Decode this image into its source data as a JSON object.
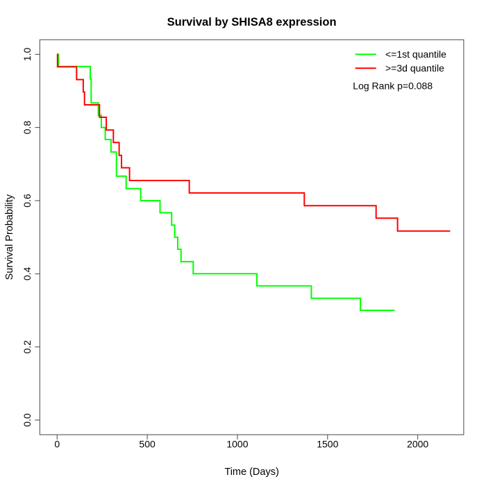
{
  "figure_title": "Survival by SHISA8 expression",
  "chart_data": {
    "type": "line",
    "subtype": "kaplan_meier_step",
    "title": "Survival by SHISA8 expression",
    "xlabel": "Time (Days)",
    "ylabel": "Survival Probability",
    "grid": false,
    "legend_position": "top-right",
    "annotation": "Log Rank p=0.088",
    "xlim": [
      -96,
      2255
    ],
    "ylim": [
      -0.04,
      1.04
    ],
    "x_tick_values": [
      0,
      500,
      1000,
      1500,
      2000
    ],
    "x_tick_labels": [
      "0",
      "500",
      "1000",
      "1500",
      "2000"
    ],
    "y_tick_values": [
      0.0,
      0.2,
      0.4,
      0.6,
      0.8,
      1.0
    ],
    "y_tick_labels": [
      "0.0",
      "0.2",
      "0.4",
      "0.6",
      "0.8",
      "1.0"
    ],
    "axis_color": "#464646",
    "series": [
      {
        "name": "<=1st quantile",
        "color": "#00ff00",
        "end_time": 1872,
        "steps": [
          [
            0,
            1.0
          ],
          [
            8,
            0.967
          ],
          [
            184,
            0.933
          ],
          [
            189,
            0.867
          ],
          [
            229,
            0.833
          ],
          [
            245,
            0.8
          ],
          [
            267,
            0.767
          ],
          [
            299,
            0.733
          ],
          [
            329,
            0.667
          ],
          [
            383,
            0.633
          ],
          [
            464,
            0.6
          ],
          [
            571,
            0.567
          ],
          [
            635,
            0.533
          ],
          [
            652,
            0.5
          ],
          [
            669,
            0.467
          ],
          [
            687,
            0.433
          ],
          [
            755,
            0.4
          ],
          [
            1108,
            0.367
          ],
          [
            1410,
            0.333
          ],
          [
            1682,
            0.3
          ]
        ]
      },
      {
        "name": ">=3d quantile",
        "color": "#ff0000",
        "end_time": 2180,
        "steps": [
          [
            0,
            1.0
          ],
          [
            2,
            0.966
          ],
          [
            108,
            0.931
          ],
          [
            145,
            0.897
          ],
          [
            152,
            0.862
          ],
          [
            235,
            0.828
          ],
          [
            273,
            0.793
          ],
          [
            312,
            0.759
          ],
          [
            344,
            0.724
          ],
          [
            357,
            0.69
          ],
          [
            402,
            0.655
          ],
          [
            733,
            0.621
          ],
          [
            1371,
            0.586
          ],
          [
            1769,
            0.552
          ],
          [
            1888,
            0.517
          ]
        ]
      }
    ]
  }
}
